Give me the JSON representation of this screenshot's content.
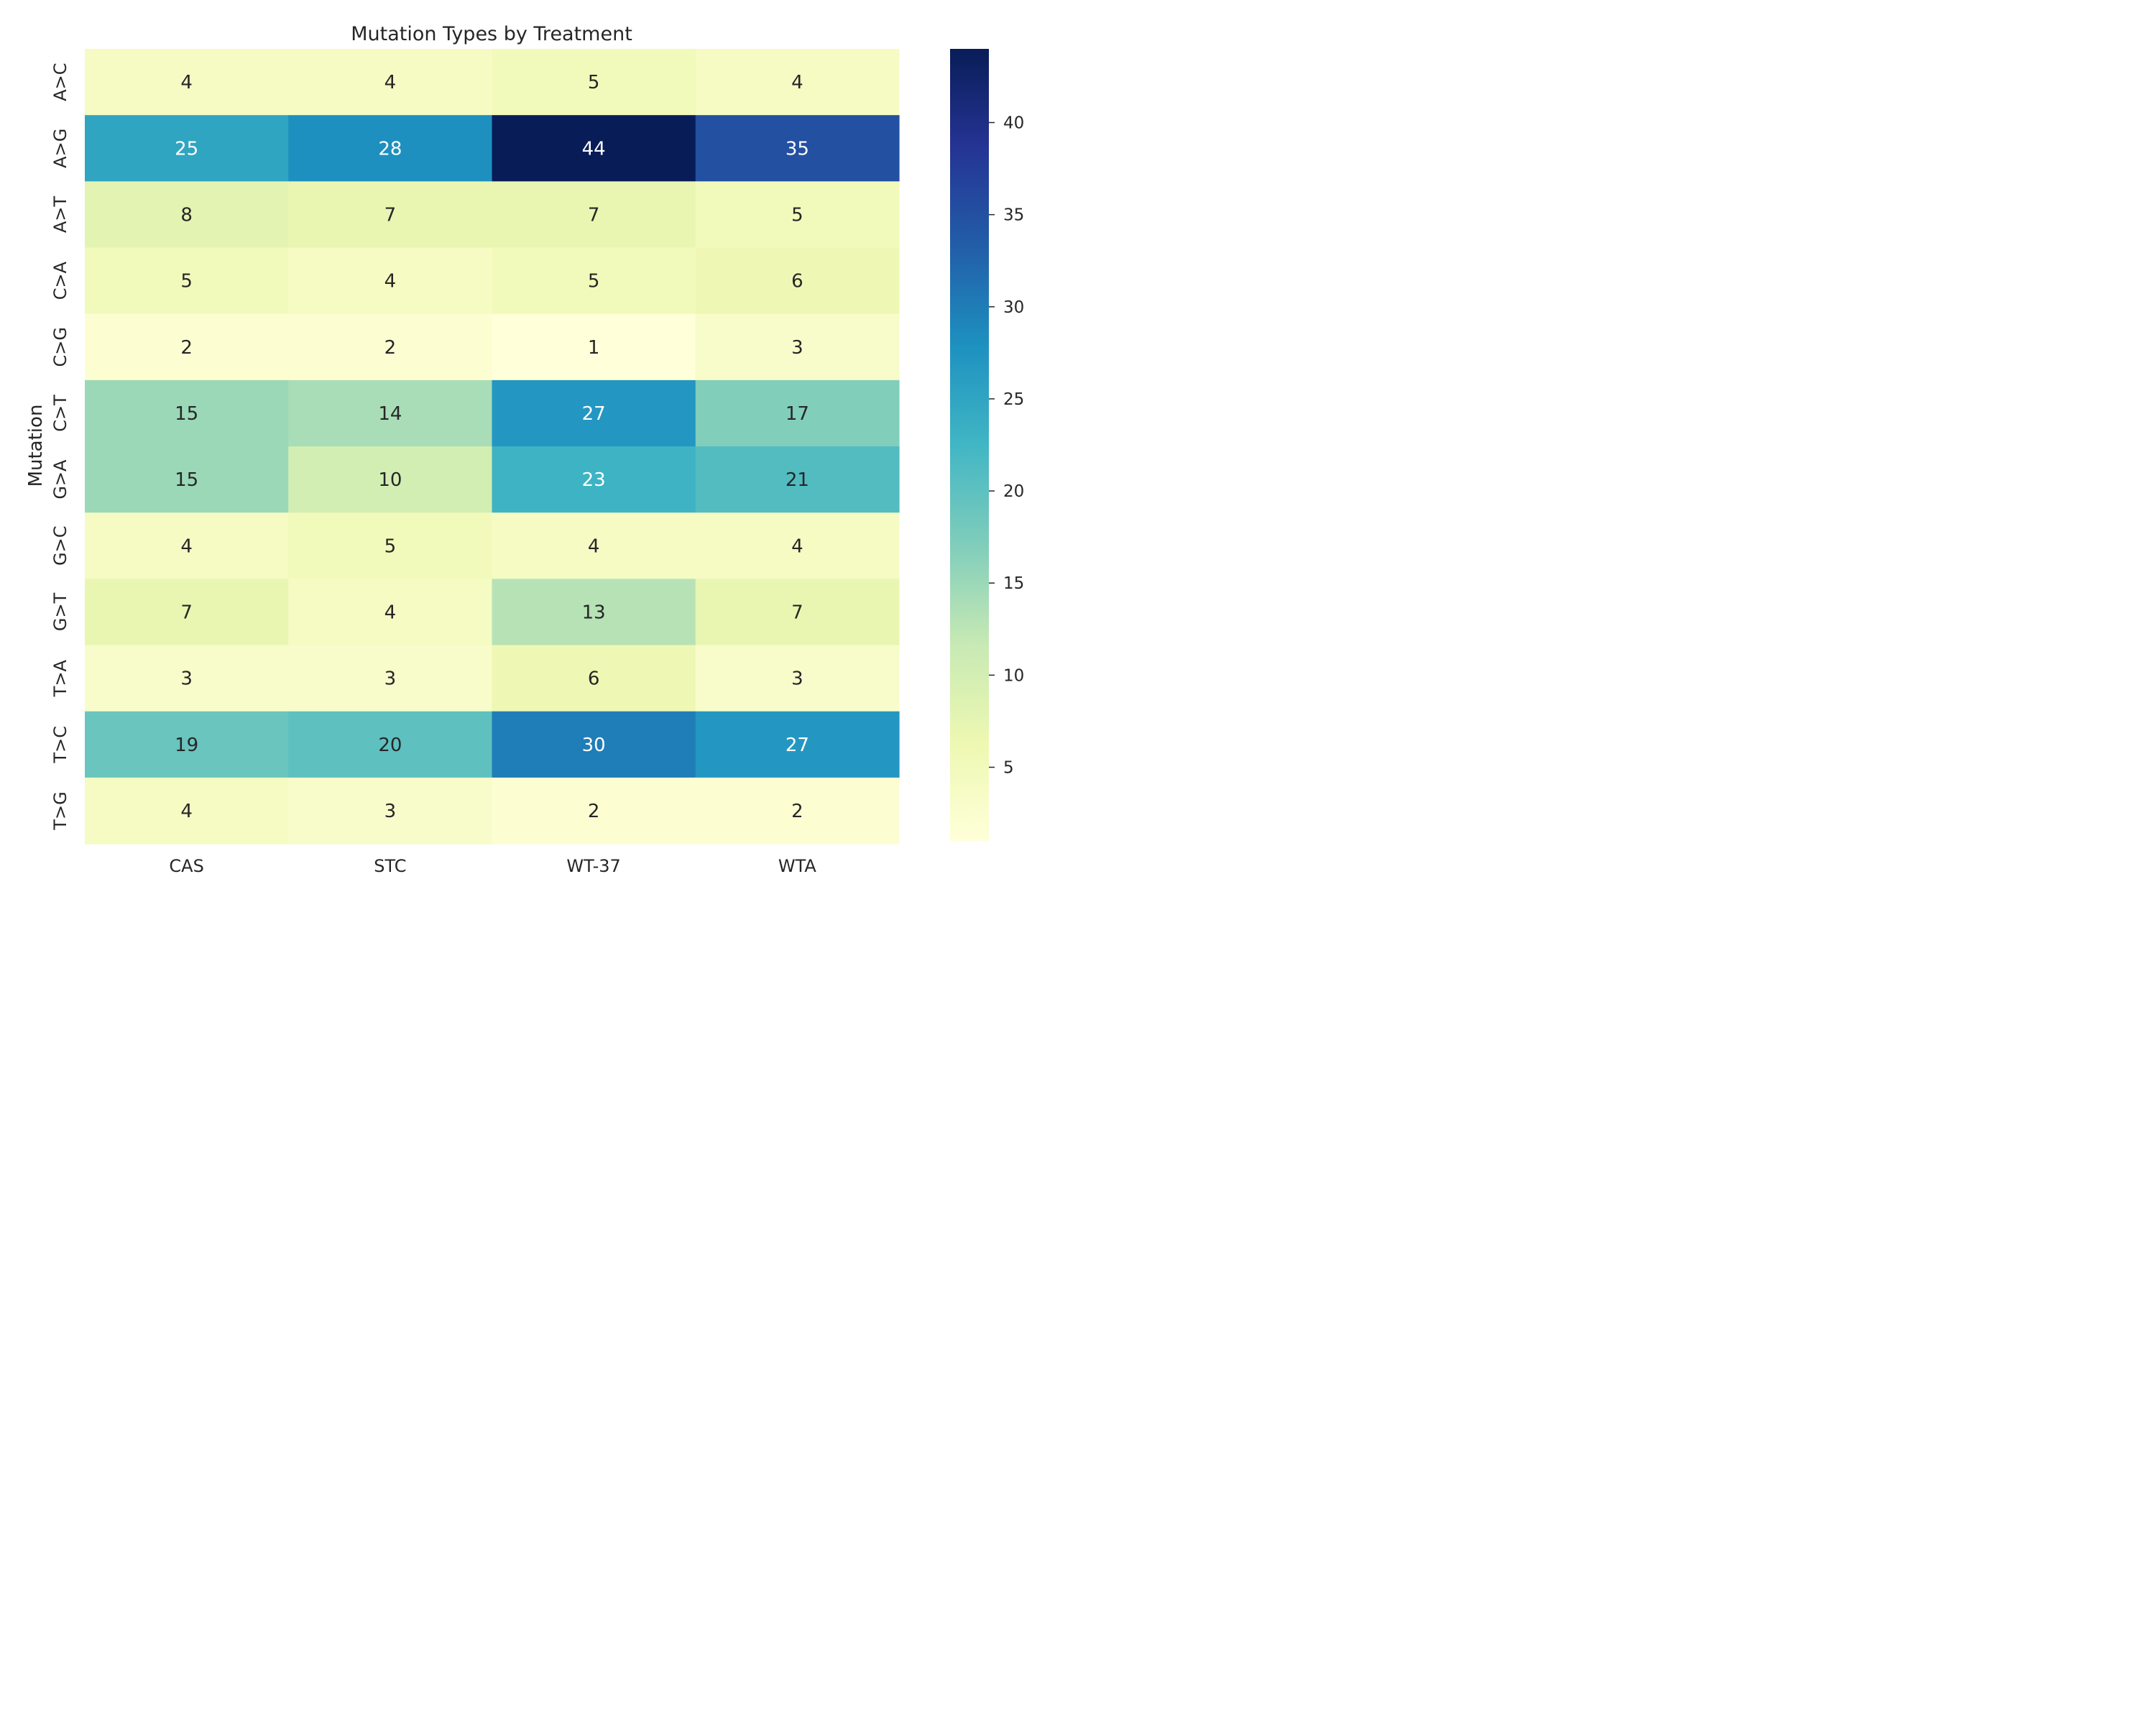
{
  "chart_data": {
    "type": "heatmap",
    "title": "Mutation Types by Treatment",
    "xlabel": "",
    "ylabel": "Mutation",
    "x": [
      "CAS",
      "STC",
      "WT-37",
      "WTA"
    ],
    "y": [
      "A>C",
      "A>G",
      "A>T",
      "C>A",
      "C>G",
      "C>T",
      "G>A",
      "G>C",
      "G>T",
      "T>A",
      "T>C",
      "T>G"
    ],
    "values": [
      [
        4,
        4,
        5,
        4
      ],
      [
        25,
        28,
        44,
        35
      ],
      [
        8,
        7,
        7,
        5
      ],
      [
        5,
        4,
        5,
        6
      ],
      [
        2,
        2,
        1,
        3
      ],
      [
        15,
        14,
        27,
        17
      ],
      [
        15,
        10,
        23,
        21
      ],
      [
        4,
        5,
        4,
        4
      ],
      [
        7,
        4,
        13,
        7
      ],
      [
        3,
        3,
        6,
        3
      ],
      [
        19,
        20,
        30,
        27
      ],
      [
        4,
        3,
        2,
        2
      ]
    ],
    "vmin": 1,
    "vmax": 44,
    "colormap": "YlGnBu",
    "colorbar_ticks": [
      5,
      10,
      15,
      20,
      25,
      30,
      35,
      40
    ],
    "annotations": true
  }
}
